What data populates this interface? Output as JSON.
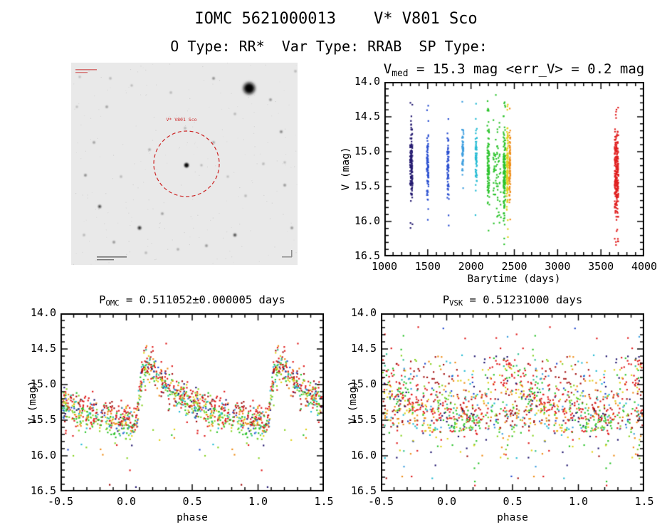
{
  "page": {
    "title": "IOMC 5621000013    V* V801 Sco",
    "subtitle": "O Type: RR*  Var Type: RRAB  SP Type:"
  },
  "finder": {
    "label": "V* V801 Sco",
    "circle_color": "#cc2222",
    "background": "#e9e9e9",
    "stars": [
      [
        250,
        36,
        8,
        1
      ],
      [
        162,
        144,
        3.2,
        0.95
      ],
      [
        32,
        112,
        1.4,
        0.6
      ],
      [
        20,
        158,
        1.5,
        0.65
      ],
      [
        40,
        202,
        2.1,
        0.8
      ],
      [
        96,
        232,
        2.4,
        0.85
      ],
      [
        128,
        212,
        1.4,
        0.6
      ],
      [
        110,
        122,
        1.3,
        0.55
      ],
      [
        50,
        62,
        1.4,
        0.6
      ],
      [
        85,
        32,
        1.1,
        0.5
      ],
      [
        140,
        42,
        1.2,
        0.5
      ],
      [
        200,
        22,
        1.5,
        0.65
      ],
      [
        280,
        52,
        1.5,
        0.6
      ],
      [
        295,
        97,
        1.6,
        0.65
      ],
      [
        270,
        142,
        1.2,
        0.5
      ],
      [
        300,
        172,
        1.5,
        0.6
      ],
      [
        245,
        187,
        1.2,
        0.5
      ],
      [
        230,
        242,
        2.0,
        0.8
      ],
      [
        190,
        257,
        1.5,
        0.6
      ],
      [
        150,
        262,
        1.3,
        0.55
      ],
      [
        105,
        267,
        1.2,
        0.5
      ],
      [
        60,
        252,
        1.5,
        0.6
      ],
      [
        18,
        242,
        1.2,
        0.5
      ],
      [
        8,
        62,
        1.1,
        0.45
      ],
      [
        55,
        22,
        1.2,
        0.5
      ],
      [
        160,
        92,
        1.2,
        0.5
      ],
      [
        200,
        112,
        1.4,
        0.55
      ],
      [
        183,
        144,
        1.1,
        0.5
      ],
      [
        230,
        72,
        1.2,
        0.5
      ],
      [
        310,
        232,
        1.5,
        0.6
      ],
      [
        315,
        12,
        1.2,
        0.5
      ],
      [
        12,
        20,
        1.1,
        0.45
      ],
      [
        300,
        140,
        1.1,
        0.45
      ],
      [
        70,
        160,
        1.2,
        0.5
      ],
      [
        220,
        160,
        1.1,
        0.45
      ]
    ]
  },
  "chart_data": {
    "palette": [
      "#241a70",
      "#2a4fd0",
      "#3f9fdf",
      "#28bcd4",
      "#2fbf8f",
      "#2ec42e",
      "#8ad428",
      "#e0d21e",
      "#ef8e1a",
      "#e01f1f",
      "#a31212"
    ],
    "panels": [
      {
        "id": "lightcurve",
        "type": "scatter",
        "seed": 7,
        "title_parts": [
          {
            "t": "V"
          },
          {
            "t": "med",
            "sub": true
          },
          {
            "t": " = 15.3 mag <err_V> = 0.2 mag"
          }
        ],
        "xlabel": "Barytime (days)",
        "ylabel": "V (mag)",
        "xlim": [
          1000,
          4000
        ],
        "ylim": [
          14.0,
          16.5
        ],
        "x_minor": 100,
        "y_minor": 0.1,
        "xticks": {
          "values": [
            1000,
            1500,
            2000,
            2500,
            3000,
            3500,
            4000
          ],
          "labels": [
            "1000",
            "1500",
            "2000",
            "2500",
            "3000",
            "3500",
            "4000"
          ]
        },
        "yticks": {
          "values": [
            14.0,
            14.5,
            15.0,
            15.5,
            16.0,
            16.5
          ],
          "labels": [
            "14.0",
            "14.5",
            "15.0",
            "15.5",
            "16.0",
            "16.5"
          ]
        },
        "points": {
          "mode": "clusters",
          "clusters": [
            {
              "x": 1310,
              "sx": 14,
              "vmin": 14.55,
              "vmax": 15.78,
              "n": 130,
              "color": 0
            },
            {
              "x": 1500,
              "sx": 10,
              "vmin": 14.62,
              "vmax": 15.72,
              "n": 85,
              "color": 1
            },
            {
              "x": 1735,
              "sx": 10,
              "vmin": 14.65,
              "vmax": 15.75,
              "n": 75,
              "color": 1
            },
            {
              "x": 1905,
              "sx": 9,
              "vmin": 14.6,
              "vmax": 15.4,
              "n": 55,
              "color": 2
            },
            {
              "x": 2060,
              "sx": 9,
              "vmin": 14.6,
              "vmax": 15.65,
              "n": 65,
              "color": 3
            },
            {
              "x": 2200,
              "sx": 12,
              "vmin": 14.55,
              "vmax": 15.85,
              "n": 95,
              "color": 5
            },
            {
              "x": 2300,
              "sx": 45,
              "vmin": 14.5,
              "vmax": 16.25,
              "n": 70,
              "color": 5
            },
            {
              "x": 2385,
              "sx": 12,
              "vmin": 14.55,
              "vmax": 16.1,
              "n": 150,
              "color": 5
            },
            {
              "x": 2420,
              "sx": 8,
              "vmin": 14.6,
              "vmax": 15.9,
              "n": 110,
              "color": 7
            },
            {
              "x": 2448,
              "sx": 7,
              "vmin": 14.6,
              "vmax": 15.8,
              "n": 80,
              "color": 8
            },
            {
              "x": 3680,
              "sx": 22,
              "vmin": 14.6,
              "vmax": 16.05,
              "n": 230,
              "color": 9
            }
          ]
        }
      },
      {
        "id": "phase_omc",
        "type": "scatter",
        "seed": 11,
        "title_parts": [
          {
            "t": "P"
          },
          {
            "t": "OMC",
            "sub": true
          },
          {
            "t": " = 0.511052±0.000005 days"
          }
        ],
        "xlabel": "phase",
        "ylabel": "V (mag)",
        "xlim": [
          -0.5,
          1.5
        ],
        "ylim": [
          14.0,
          16.5
        ],
        "x_minor": 0.1,
        "y_minor": 0.1,
        "xticks": {
          "values": [
            -0.5,
            0.0,
            0.5,
            1.0,
            1.5
          ],
          "labels": [
            "-0.5",
            "0.0",
            "0.5",
            "1.0",
            "1.5"
          ]
        },
        "yticks": {
          "values": [
            14.0,
            14.5,
            15.0,
            15.5,
            16.0,
            16.5
          ],
          "labels": [
            "14.0",
            "14.5",
            "15.0",
            "15.5",
            "16.0",
            "16.5"
          ]
        },
        "points": {
          "mode": "folded",
          "n_base": 720,
          "mag_sigma": 0.11,
          "phase_sigma": 0.004,
          "outlier_faint": 0.035,
          "outlier_bright": 0.006,
          "mean_curve": [
            [
              0.0,
              15.5
            ],
            [
              0.04,
              15.56
            ],
            [
              0.07,
              15.58
            ],
            [
              0.09,
              15.3
            ],
            [
              0.11,
              14.95
            ],
            [
              0.13,
              14.75
            ],
            [
              0.15,
              14.68
            ],
            [
              0.18,
              14.72
            ],
            [
              0.22,
              14.82
            ],
            [
              0.27,
              14.93
            ],
            [
              0.33,
              15.05
            ],
            [
              0.4,
              15.15
            ],
            [
              0.5,
              15.26
            ],
            [
              0.6,
              15.34
            ],
            [
              0.7,
              15.4
            ],
            [
              0.8,
              15.45
            ],
            [
              0.9,
              15.49
            ],
            [
              1.0,
              15.5
            ]
          ],
          "group_weights": [
            0.06,
            0.04,
            0.03,
            0.04,
            0.04,
            0.16,
            0.08,
            0.09,
            0.09,
            0.26,
            0.11
          ],
          "group_mag_offsets": [
            0,
            0,
            0,
            0,
            0,
            0.05,
            0.08,
            0.02,
            -0.02,
            -0.05,
            -0.04
          ],
          "group_phase_offsets": [
            0,
            0,
            0,
            0,
            0,
            0,
            0,
            0,
            0,
            0,
            0
          ]
        }
      },
      {
        "id": "phase_vsk",
        "type": "scatter",
        "seed": 23,
        "title_parts": [
          {
            "t": "P"
          },
          {
            "t": "VSK",
            "sub": true
          },
          {
            "t": " = 0.51231000 days"
          }
        ],
        "xlabel": "phase",
        "ylabel": "V (mag)",
        "xlim": [
          -0.5,
          1.5
        ],
        "ylim": [
          14.0,
          16.5
        ],
        "x_minor": 0.1,
        "y_minor": 0.1,
        "xticks": {
          "values": [
            -0.5,
            0.0,
            0.5,
            1.0,
            1.5
          ],
          "labels": [
            "-0.5",
            "0.0",
            "0.5",
            "1.0",
            "1.5"
          ]
        },
        "yticks": {
          "values": [
            14.0,
            14.5,
            15.0,
            15.5,
            16.0,
            16.5
          ],
          "labels": [
            "14.0",
            "14.5",
            "15.0",
            "15.5",
            "16.0",
            "16.5"
          ]
        },
        "points": {
          "mode": "folded",
          "n_base": 720,
          "mag_sigma": 0.13,
          "phase_sigma": 0.09,
          "outlier_faint": 0.05,
          "outlier_bright": 0.006,
          "mean_curve": [
            [
              0.0,
              15.5
            ],
            [
              0.04,
              15.56
            ],
            [
              0.07,
              15.58
            ],
            [
              0.09,
              15.3
            ],
            [
              0.11,
              14.95
            ],
            [
              0.13,
              14.75
            ],
            [
              0.15,
              14.68
            ],
            [
              0.18,
              14.72
            ],
            [
              0.22,
              14.82
            ],
            [
              0.27,
              14.93
            ],
            [
              0.33,
              15.05
            ],
            [
              0.4,
              15.15
            ],
            [
              0.5,
              15.26
            ],
            [
              0.6,
              15.34
            ],
            [
              0.7,
              15.4
            ],
            [
              0.8,
              15.45
            ],
            [
              0.9,
              15.49
            ],
            [
              1.0,
              15.5
            ]
          ],
          "group_weights": [
            0.06,
            0.04,
            0.03,
            0.04,
            0.04,
            0.16,
            0.08,
            0.09,
            0.09,
            0.26,
            0.11
          ],
          "group_mag_offsets": [
            0,
            0,
            0,
            0,
            0,
            0.05,
            0.08,
            0.02,
            -0.02,
            -0.05,
            -0.04
          ],
          "group_phase_offsets": [
            0.12,
            -0.3,
            0.45,
            -0.15,
            0.3,
            0.3,
            -0.45,
            0.1,
            -0.2,
            0.22,
            -0.38
          ]
        }
      }
    ]
  }
}
